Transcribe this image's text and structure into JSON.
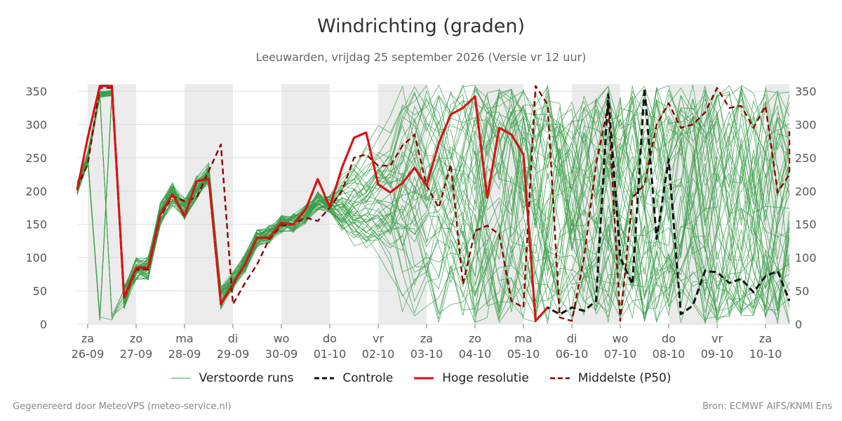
{
  "chart_data": {
    "type": "line",
    "title": "Windrichting (graden)",
    "subtitle": "Leeuwarden, vrijdag 25 september 2026 (Versie vr 12 uur)",
    "ylim": [
      0,
      360
    ],
    "y_ticks": [
      0,
      50,
      100,
      150,
      200,
      250,
      300,
      350
    ],
    "x_range": [
      -0.25,
      14.5
    ],
    "x_ticks": [
      {
        "x": 0,
        "day": "za",
        "date": "26-09"
      },
      {
        "x": 1,
        "day": "zo",
        "date": "27-09"
      },
      {
        "x": 2,
        "day": "ma",
        "date": "28-09"
      },
      {
        "x": 3,
        "day": "di",
        "date": "29-09"
      },
      {
        "x": 4,
        "day": "wo",
        "date": "30-09"
      },
      {
        "x": 5,
        "day": "do",
        "date": "01-10"
      },
      {
        "x": 6,
        "day": "vr",
        "date": "02-10"
      },
      {
        "x": 7,
        "day": "za",
        "date": "03-10"
      },
      {
        "x": 8,
        "day": "zo",
        "date": "04-10"
      },
      {
        "x": 9,
        "day": "ma",
        "date": "05-10"
      },
      {
        "x": 10,
        "day": "di",
        "date": "06-10"
      },
      {
        "x": 11,
        "day": "wo",
        "date": "07-10"
      },
      {
        "x": 12,
        "day": "do",
        "date": "08-10"
      },
      {
        "x": 13,
        "day": "vr",
        "date": "09-10"
      },
      {
        "x": 14,
        "day": "za",
        "date": "10-10"
      }
    ],
    "shaded_bands": [
      [
        0,
        1
      ],
      [
        2,
        3
      ],
      [
        4,
        5
      ],
      [
        6,
        7
      ],
      [
        8,
        9
      ],
      [
        10,
        11
      ],
      [
        12,
        13
      ],
      [
        14,
        14.5
      ]
    ],
    "grid": true,
    "legend_position": "bottom",
    "series": [
      {
        "name": "Controle",
        "color": "#111111",
        "style": "dashed",
        "points": [
          [
            -0.25,
            202
          ],
          [
            0,
            280
          ],
          [
            0.25,
            358
          ],
          [
            0.5,
            358
          ],
          [
            0.75,
            40
          ],
          [
            1,
            85
          ],
          [
            1.25,
            85
          ],
          [
            1.5,
            165
          ],
          [
            1.75,
            195
          ],
          [
            2,
            162
          ],
          [
            2.25,
            215
          ],
          [
            2.5,
            218
          ],
          [
            2.75,
            30
          ],
          [
            3,
            60
          ],
          [
            3.25,
            90
          ],
          [
            3.5,
            130
          ],
          [
            3.75,
            130
          ],
          [
            4,
            152
          ],
          [
            4.25,
            150
          ],
          [
            4.5,
            172
          ],
          [
            4.75,
            218
          ],
          [
            5,
            176
          ],
          [
            5.25,
            235
          ],
          [
            5.5,
            280
          ],
          [
            5.75,
            288
          ],
          [
            6,
            210
          ],
          [
            6.25,
            198
          ],
          [
            6.5,
            212
          ],
          [
            6.75,
            235
          ],
          [
            7,
            208
          ],
          [
            7.25,
            272
          ],
          [
            7.5,
            315
          ],
          [
            7.75,
            325
          ],
          [
            8,
            342
          ],
          [
            8.25,
            190
          ],
          [
            8.5,
            295
          ],
          [
            8.75,
            285
          ],
          [
            9,
            255
          ],
          [
            9.25,
            5
          ],
          [
            9.5,
            25
          ],
          [
            9.75,
            15
          ],
          [
            10,
            25
          ],
          [
            10.25,
            20
          ],
          [
            10.5,
            35
          ],
          [
            10.75,
            345
          ],
          [
            11,
            100
          ],
          [
            11.25,
            60
          ],
          [
            11.5,
            355
          ],
          [
            11.75,
            128
          ],
          [
            12,
            248
          ],
          [
            12.25,
            15
          ],
          [
            12.5,
            28
          ],
          [
            12.75,
            80
          ],
          [
            13,
            78
          ],
          [
            13.25,
            62
          ],
          [
            13.5,
            68
          ],
          [
            13.75,
            48
          ],
          [
            14,
            72
          ],
          [
            14.25,
            80
          ],
          [
            14.5,
            35
          ]
        ]
      },
      {
        "name": "Hoge resolutie",
        "color": "#dd1111",
        "style": "solid",
        "points": [
          [
            -0.25,
            202
          ],
          [
            0,
            280
          ],
          [
            0.25,
            358
          ],
          [
            0.5,
            358
          ],
          [
            0.75,
            40
          ],
          [
            1,
            85
          ],
          [
            1.25,
            85
          ],
          [
            1.5,
            165
          ],
          [
            1.75,
            195
          ],
          [
            2,
            162
          ],
          [
            2.25,
            215
          ],
          [
            2.5,
            218
          ],
          [
            2.75,
            30
          ],
          [
            3,
            60
          ],
          [
            3.25,
            90
          ],
          [
            3.5,
            130
          ],
          [
            3.75,
            130
          ],
          [
            4,
            152
          ],
          [
            4.25,
            150
          ],
          [
            4.5,
            172
          ],
          [
            4.75,
            218
          ],
          [
            5,
            176
          ],
          [
            5.25,
            235
          ],
          [
            5.5,
            280
          ],
          [
            5.75,
            288
          ],
          [
            6,
            210
          ],
          [
            6.25,
            198
          ],
          [
            6.5,
            212
          ],
          [
            6.75,
            235
          ],
          [
            7,
            208
          ],
          [
            7.25,
            272
          ],
          [
            7.5,
            315
          ],
          [
            7.75,
            325
          ],
          [
            8,
            342
          ],
          [
            8.25,
            190
          ],
          [
            8.5,
            295
          ],
          [
            8.75,
            285
          ],
          [
            9,
            255
          ],
          [
            9.25,
            5
          ],
          [
            9.5,
            25
          ]
        ]
      },
      {
        "name": "Middelste (P50)",
        "color": "#8b0000",
        "style": "dashed",
        "points": [
          [
            -0.25,
            205
          ],
          [
            0,
            240
          ],
          [
            0.25,
            355
          ],
          [
            0.5,
            355
          ],
          [
            0.75,
            38
          ],
          [
            1,
            82
          ],
          [
            1.25,
            82
          ],
          [
            1.5,
            162
          ],
          [
            1.75,
            192
          ],
          [
            2,
            185
          ],
          [
            2.25,
            190
          ],
          [
            2.5,
            230
          ],
          [
            2.75,
            270
          ],
          [
            3,
            30
          ],
          [
            3.25,
            62
          ],
          [
            3.5,
            90
          ],
          [
            3.75,
            128
          ],
          [
            4,
            148
          ],
          [
            4.25,
            150
          ],
          [
            4.5,
            160
          ],
          [
            4.75,
            155
          ],
          [
            5,
            175
          ],
          [
            5.25,
            200
          ],
          [
            5.5,
            250
          ],
          [
            5.75,
            255
          ],
          [
            6,
            238
          ],
          [
            6.25,
            238
          ],
          [
            6.5,
            268
          ],
          [
            6.75,
            285
          ],
          [
            7,
            208
          ],
          [
            7.25,
            175
          ],
          [
            7.5,
            240
          ],
          [
            7.75,
            60
          ],
          [
            8,
            140
          ],
          [
            8.25,
            148
          ],
          [
            8.5,
            135
          ],
          [
            8.75,
            35
          ],
          [
            9,
            25
          ],
          [
            9.25,
            358
          ],
          [
            9.5,
            330
          ],
          [
            9.75,
            10
          ],
          [
            10,
            5
          ],
          [
            10.25,
            100
          ],
          [
            10.5,
            240
          ],
          [
            10.75,
            330
          ],
          [
            11,
            5
          ],
          [
            11.25,
            190
          ],
          [
            11.5,
            210
          ],
          [
            11.75,
            300
          ],
          [
            12,
            332
          ],
          [
            12.25,
            295
          ],
          [
            12.5,
            300
          ],
          [
            12.75,
            318
          ],
          [
            13,
            355
          ],
          [
            13.25,
            325
          ],
          [
            13.5,
            328
          ],
          [
            13.75,
            295
          ],
          [
            14,
            328
          ],
          [
            14.25,
            198
          ],
          [
            14.5,
            225
          ],
          [
            14.75,
            290
          ]
        ]
      },
      {
        "name": "Verstoorde runs",
        "color": "#3a9e4a",
        "style": "thin",
        "members": 50,
        "common_start": [
          [
            -0.25,
            204
          ],
          [
            0,
            250
          ],
          [
            0.25,
            350
          ],
          [
            0.5,
            352
          ],
          [
            0.75,
            40
          ],
          [
            1,
            84
          ],
          [
            1.25,
            84
          ],
          [
            1.5,
            165
          ],
          [
            1.75,
            195
          ],
          [
            2,
            175
          ],
          [
            2.25,
            205
          ],
          [
            2.5,
            225
          ],
          [
            2.75,
            40
          ],
          [
            3,
            65
          ],
          [
            3.25,
            92
          ],
          [
            3.5,
            128
          ],
          [
            3.75,
            135
          ],
          [
            4,
            150
          ],
          [
            4.25,
            152
          ],
          [
            4.5,
            165
          ],
          [
            4.75,
            185
          ],
          [
            5,
            180
          ]
        ]
      }
    ]
  },
  "legend": {
    "items": [
      {
        "label": "Verstoorde runs",
        "color": "#3a9e4a",
        "style": "thin"
      },
      {
        "label": "Controle",
        "color": "#111111",
        "style": "dashed"
      },
      {
        "label": "Hoge resolutie",
        "color": "#dd1111",
        "style": "solid"
      },
      {
        "label": "Middelste (P50)",
        "color": "#8b0000",
        "style": "dashed"
      }
    ]
  },
  "footer": {
    "left": "Gegenereerd door MeteoVPS (meteo-service.nl)",
    "right": "Bron: ECMWF AIFS/KNMI Ens"
  }
}
